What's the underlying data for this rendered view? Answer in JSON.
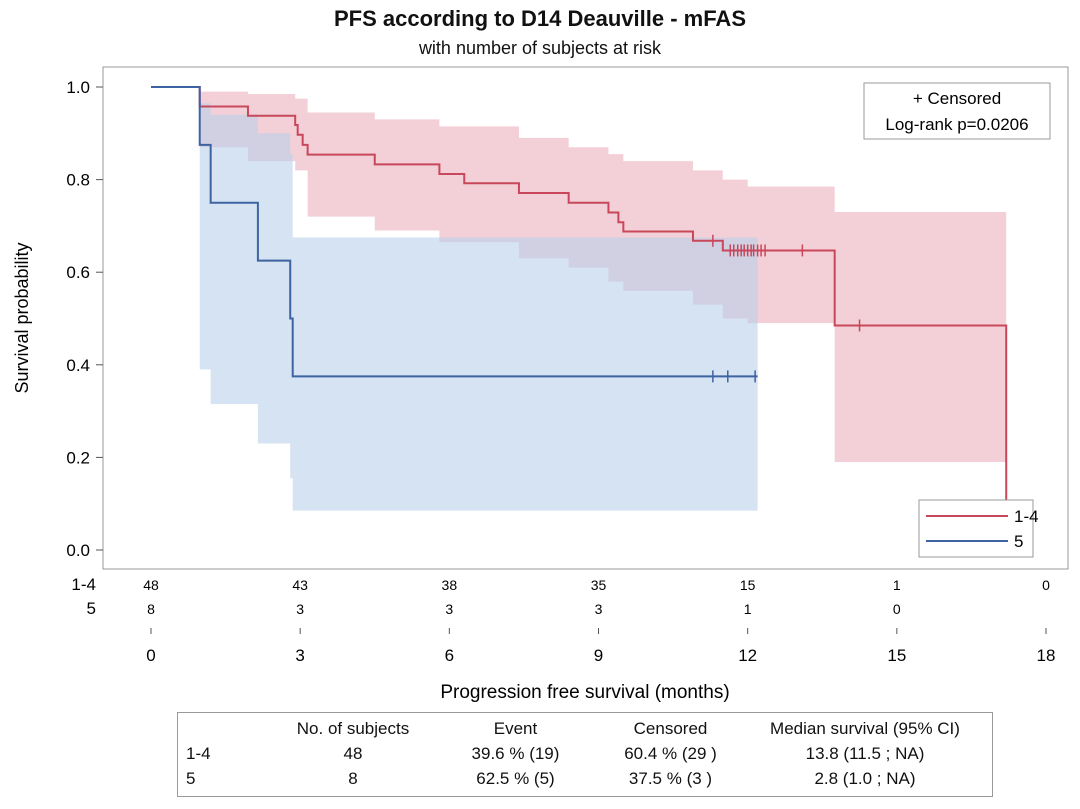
{
  "chart_data": {
    "type": "line",
    "subtype": "kaplan-meier",
    "title": "PFS according to D14 Deauville - mFAS",
    "subtitle": "with number of subjects at risk",
    "xlabel": "Progression free survival (months)",
    "ylabel": "Survival probability",
    "xlim": [
      0,
      18
    ],
    "ylim": [
      0,
      1
    ],
    "x_ticks": [
      "0",
      "3",
      "6",
      "9",
      "12",
      "15",
      "18"
    ],
    "y_ticks": [
      "0.0",
      "0.2",
      "0.4",
      "0.6",
      "0.8",
      "1.0"
    ],
    "inset": {
      "line1": "+ Censored",
      "line2": "Log-rank p=0.0206"
    },
    "legend_position": "bottom-right",
    "series": [
      {
        "name": "1-4",
        "color": "#c8475a",
        "band_color": "#e9a9b6",
        "steps": [
          {
            "x": 0,
            "y": 1.0
          },
          {
            "x": 0.98,
            "y": 0.958
          },
          {
            "x": 1.35,
            "y": 0.958
          },
          {
            "x": 1.95,
            "y": 0.938
          },
          {
            "x": 2.9,
            "y": 0.918
          },
          {
            "x": 2.95,
            "y": 0.897
          },
          {
            "x": 3.05,
            "y": 0.875
          },
          {
            "x": 3.15,
            "y": 0.854
          },
          {
            "x": 4.5,
            "y": 0.833
          },
          {
            "x": 5.8,
            "y": 0.812
          },
          {
            "x": 6.3,
            "y": 0.792
          },
          {
            "x": 7.4,
            "y": 0.771
          },
          {
            "x": 8.4,
            "y": 0.75
          },
          {
            "x": 9.2,
            "y": 0.729
          },
          {
            "x": 9.4,
            "y": 0.708
          },
          {
            "x": 9.5,
            "y": 0.688
          },
          {
            "x": 10.0,
            "y": 0.688
          },
          {
            "x": 10.9,
            "y": 0.668
          },
          {
            "x": 11.4,
            "y": 0.668
          },
          {
            "x": 11.5,
            "y": 0.647
          },
          {
            "x": 13.75,
            "y": 0.485
          },
          {
            "x": 17.2,
            "y": 0.0
          }
        ],
        "ci_upper": [
          {
            "x": 0,
            "y": 1.0
          },
          {
            "x": 0.98,
            "y": 0.99
          },
          {
            "x": 1.95,
            "y": 0.985
          },
          {
            "x": 2.9,
            "y": 0.975
          },
          {
            "x": 3.15,
            "y": 0.945
          },
          {
            "x": 4.5,
            "y": 0.93
          },
          {
            "x": 5.8,
            "y": 0.915
          },
          {
            "x": 7.4,
            "y": 0.89
          },
          {
            "x": 8.4,
            "y": 0.87
          },
          {
            "x": 9.2,
            "y": 0.855
          },
          {
            "x": 9.5,
            "y": 0.84
          },
          {
            "x": 10.9,
            "y": 0.82
          },
          {
            "x": 11.5,
            "y": 0.8
          },
          {
            "x": 12.0,
            "y": 0.785
          },
          {
            "x": 13.75,
            "y": 0.73
          },
          {
            "x": 17.2,
            "y": 0.73
          }
        ],
        "ci_lower": [
          {
            "x": 0,
            "y": 1.0
          },
          {
            "x": 0.98,
            "y": 0.87
          },
          {
            "x": 1.95,
            "y": 0.84
          },
          {
            "x": 2.9,
            "y": 0.82
          },
          {
            "x": 3.15,
            "y": 0.72
          },
          {
            "x": 4.5,
            "y": 0.69
          },
          {
            "x": 5.8,
            "y": 0.665
          },
          {
            "x": 7.4,
            "y": 0.63
          },
          {
            "x": 8.4,
            "y": 0.61
          },
          {
            "x": 9.2,
            "y": 0.58
          },
          {
            "x": 9.5,
            "y": 0.56
          },
          {
            "x": 10.9,
            "y": 0.53
          },
          {
            "x": 11.5,
            "y": 0.5
          },
          {
            "x": 12.0,
            "y": 0.49
          },
          {
            "x": 13.75,
            "y": 0.19
          },
          {
            "x": 17.2,
            "y": 0.19
          }
        ],
        "censored": [
          11.3,
          11.65,
          11.72,
          11.8,
          11.87,
          11.93,
          12.0,
          12.07,
          12.12,
          12.2,
          12.27,
          12.35,
          13.1,
          14.25
        ]
      },
      {
        "name": "5",
        "color": "#3e63a2",
        "band_color": "#b9d0ea",
        "steps": [
          {
            "x": 0,
            "y": 1.0
          },
          {
            "x": 0.98,
            "y": 0.875
          },
          {
            "x": 1.2,
            "y": 0.75
          },
          {
            "x": 2.15,
            "y": 0.625
          },
          {
            "x": 2.8,
            "y": 0.5
          },
          {
            "x": 2.85,
            "y": 0.375
          },
          {
            "x": 12.2,
            "y": 0.375
          }
        ],
        "ci_upper": [
          {
            "x": 0,
            "y": 1.0
          },
          {
            "x": 0.98,
            "y": 0.965
          },
          {
            "x": 1.2,
            "y": 0.94
          },
          {
            "x": 2.15,
            "y": 0.9
          },
          {
            "x": 2.8,
            "y": 0.855
          },
          {
            "x": 2.85,
            "y": 0.675
          },
          {
            "x": 12.2,
            "y": 0.675
          }
        ],
        "ci_lower": [
          {
            "x": 0,
            "y": 1.0
          },
          {
            "x": 0.98,
            "y": 0.39
          },
          {
            "x": 1.2,
            "y": 0.315
          },
          {
            "x": 2.15,
            "y": 0.23
          },
          {
            "x": 2.8,
            "y": 0.155
          },
          {
            "x": 2.85,
            "y": 0.085
          },
          {
            "x": 12.2,
            "y": 0.085
          }
        ],
        "censored": [
          11.3,
          11.6,
          12.15
        ]
      }
    ],
    "at_risk": {
      "times": [
        0,
        3,
        6,
        9,
        12,
        15,
        18
      ],
      "rows": [
        {
          "label": "1-4",
          "counts": [
            "48",
            "43",
            "38",
            "35",
            "15",
            "1",
            "0"
          ]
        },
        {
          "label": "5",
          "counts": [
            "8",
            "3",
            "3",
            "3",
            "1",
            "0",
            ""
          ]
        }
      ]
    },
    "summary_table": {
      "headers": [
        "",
        "No. of subjects",
        "Event",
        "Censored",
        "Median survival (95% CI)"
      ],
      "rows": [
        [
          "1-4",
          "48",
          "39.6 % (19)",
          "60.4 % (29 )",
          "13.8 (11.5 ; NA)"
        ],
        [
          "5",
          "8",
          "62.5 % (5)",
          "37.5 % (3 )",
          "2.8 (1.0 ; NA)"
        ]
      ]
    }
  }
}
